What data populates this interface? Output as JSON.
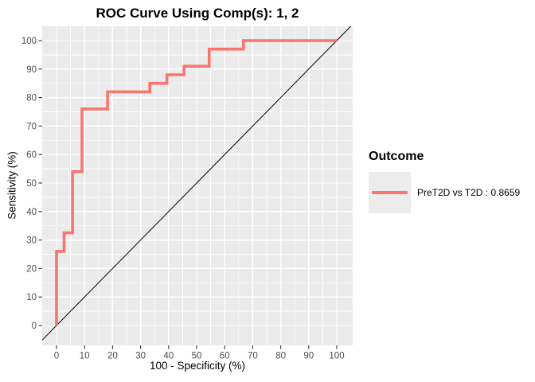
{
  "title": "ROC Curve Using Comp(s): 1, 2",
  "axes": {
    "x_label": "100 - Specificity (%)",
    "y_label": "Sensitivity (%)"
  },
  "legend": {
    "title": "Outcome",
    "entries": [
      {
        "label": "PreT2D vs T2D : 0.8659",
        "auc": "0.8659",
        "color": "#F8766D"
      }
    ]
  },
  "colors": {
    "panel_bg": "#EBEBEB",
    "grid": "#FFFFFF",
    "curve": "#F8766D",
    "diagonal": "#000000",
    "tick_mark": "#333333",
    "tick_label": "#4D4D4D",
    "legend_key_bg": "#ECECEC"
  },
  "chart_data": {
    "type": "line",
    "subtype": "roc-step-curve",
    "title": "ROC Curve Using Comp(s): 1, 2",
    "xlabel": "100 - Specificity (%)",
    "ylabel": "Sensitivity (%)",
    "xlim": [
      -5,
      105
    ],
    "ylim": [
      -5,
      105
    ],
    "x_ticks": [
      0,
      10,
      20,
      30,
      40,
      50,
      60,
      70,
      80,
      90,
      100
    ],
    "y_ticks": [
      0,
      10,
      20,
      30,
      40,
      50,
      60,
      70,
      80,
      90,
      100
    ],
    "grid": "major and minor white gridlines on gray panel",
    "legend_position": "right",
    "series": [
      {
        "name": "PreT2D vs T2D : 0.8659",
        "auc": 0.8659,
        "color": "#F8766D",
        "points": [
          [
            0,
            0
          ],
          [
            0,
            26
          ],
          [
            2.7,
            26
          ],
          [
            2.7,
            32.5
          ],
          [
            5.7,
            32.5
          ],
          [
            5.7,
            54
          ],
          [
            9.1,
            54
          ],
          [
            9.1,
            76
          ],
          [
            18.2,
            76
          ],
          [
            18.2,
            82
          ],
          [
            33.3,
            82
          ],
          [
            33.3,
            85
          ],
          [
            39.4,
            85
          ],
          [
            39.4,
            88
          ],
          [
            45.5,
            88
          ],
          [
            45.5,
            91
          ],
          [
            54.5,
            91
          ],
          [
            54.5,
            97
          ],
          [
            66.7,
            97
          ],
          [
            66.7,
            100
          ],
          [
            100,
            100
          ]
        ]
      }
    ],
    "reference_line": {
      "type": "identity-diagonal",
      "from": [
        0,
        0
      ],
      "to": [
        100,
        100
      ],
      "color": "#000000"
    }
  }
}
